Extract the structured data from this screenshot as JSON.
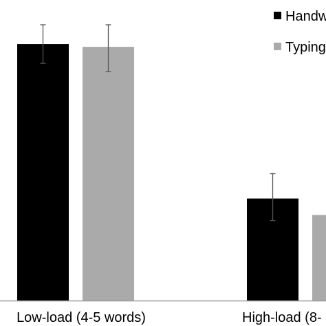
{
  "chart_data": {
    "type": "bar",
    "categories": [
      "Low-load (4-5 words)",
      "High-load (8-"
    ],
    "series": [
      {
        "name": "Handw",
        "color": "#000000",
        "values": [
          0.93,
          0.37
        ],
        "error_low": [
          0.86,
          0.29
        ],
        "error_high": [
          1.0,
          0.46
        ]
      },
      {
        "name": "Typing",
        "color": "#aaaaaa",
        "values": [
          0.92,
          0.31
        ],
        "error_low": [
          0.83,
          null
        ],
        "error_high": [
          1.0,
          null
        ]
      }
    ],
    "ylim": [
      0,
      1.0
    ],
    "grid": false,
    "legend_position": "top-right"
  }
}
